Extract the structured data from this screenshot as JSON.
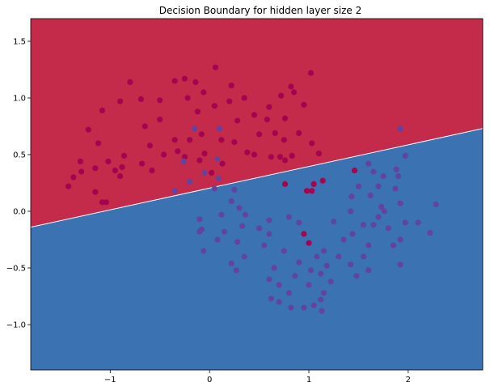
{
  "chart_data": {
    "type": "scatter",
    "title": "Decision Boundary for hidden layer size 2",
    "xlabel": "",
    "ylabel": "",
    "xlim": [
      -1.8,
      2.75
    ],
    "ylim": [
      -1.4,
      1.7
    ],
    "grid": false,
    "legend": "none",
    "x_ticks": [
      -1,
      0,
      1,
      2
    ],
    "x_tick_labels": [
      "−1",
      "0",
      "1",
      "2"
    ],
    "y_ticks": [
      -1.0,
      -0.5,
      0.0,
      0.5,
      1.0,
      1.5
    ],
    "y_tick_labels": [
      "−1.0",
      "−0.5",
      "0.0",
      "0.5",
      "1.0",
      "1.5"
    ],
    "decision_boundary": {
      "points": [
        [
          -1.8,
          -0.14
        ],
        [
          2.75,
          0.73
        ]
      ]
    },
    "colors": {
      "region_upper": "#c42b4a",
      "region_lower": "#3b72b1",
      "class_0": "#a3034f",
      "class_1": "#6244a0"
    },
    "series": [
      {
        "class": 0,
        "points": [
          [
            -1.3,
            0.44
          ],
          [
            -1.22,
            0.72
          ],
          [
            -1.12,
            0.6
          ],
          [
            -1.15,
            0.38
          ],
          [
            -1.02,
            0.44
          ],
          [
            -0.95,
            0.36
          ],
          [
            -0.86,
            0.49
          ],
          [
            -0.88,
            0.39
          ],
          [
            -0.6,
            0.58
          ],
          [
            -0.35,
            0.63
          ],
          [
            -0.2,
            0.63
          ],
          [
            -0.1,
            0.45
          ],
          [
            -0.08,
            0.68
          ],
          [
            -1.42,
            0.22
          ],
          [
            -1.37,
            0.3
          ],
          [
            -1.29,
            0.35
          ],
          [
            -1.15,
            0.17
          ],
          [
            -1.04,
            0.08
          ],
          [
            -0.9,
            0.31
          ],
          [
            -0.68,
            0.42
          ],
          [
            -0.58,
            0.36
          ],
          [
            -0.46,
            0.5
          ],
          [
            -0.32,
            0.53
          ],
          [
            -0.25,
            0.48
          ],
          [
            -0.05,
            0.51
          ],
          [
            0.02,
            0.34
          ],
          [
            0.13,
            0.42
          ],
          [
            0.12,
            0.63
          ],
          [
            0.25,
            0.61
          ],
          [
            0.38,
            0.52
          ],
          [
            0.45,
            0.5
          ],
          [
            0.5,
            0.68
          ],
          [
            0.58,
            0.81
          ],
          [
            0.66,
            0.69
          ],
          [
            0.75,
            0.63
          ],
          [
            0.9,
            0.69
          ],
          [
            1.03,
            0.6
          ],
          [
            1.1,
            0.51
          ],
          [
            0.71,
            0.48
          ],
          [
            0.76,
            0.45
          ],
          [
            0.83,
            0.49
          ],
          [
            0.62,
            0.48
          ],
          [
            -1.08,
            0.89
          ],
          [
            -0.9,
            0.97
          ],
          [
            -0.8,
            1.14
          ],
          [
            -0.69,
            0.99
          ],
          [
            -0.5,
            0.98
          ],
          [
            -0.35,
            1.15
          ],
          [
            -0.22,
            1.0
          ],
          [
            -0.12,
            0.88
          ],
          [
            0.05,
            0.93
          ],
          [
            0.2,
            0.97
          ],
          [
            0.35,
            1.0
          ],
          [
            0.45,
            0.85
          ],
          [
            0.6,
            0.92
          ],
          [
            0.72,
            1.02
          ],
          [
            0.85,
            1.05
          ],
          [
            -0.14,
            1.14
          ],
          [
            0.06,
            1.27
          ],
          [
            0.22,
            1.11
          ],
          [
            0.82,
            1.1
          ],
          [
            -0.25,
            1.17
          ],
          [
            0.95,
            0.94
          ],
          [
            -0.06,
            1.05
          ],
          [
            -1.08,
            0.08
          ],
          [
            0.76,
            0.24
          ],
          [
            0.98,
            0.18
          ],
          [
            1.03,
            0.18
          ],
          [
            1.05,
            0.24
          ],
          [
            1.14,
            0.27
          ],
          [
            1.46,
            0.36
          ],
          [
            0.95,
            -0.2
          ],
          [
            1.0,
            -0.28
          ],
          [
            -0.65,
            0.75
          ],
          [
            0.28,
            0.8
          ],
          [
            0.76,
            0.82
          ],
          [
            -0.5,
            0.81
          ],
          [
            1.02,
            1.22
          ]
        ]
      },
      {
        "class": 1,
        "points": [
          [
            -0.15,
            0.73
          ],
          [
            0.1,
            0.73
          ],
          [
            -0.26,
            0.44
          ],
          [
            0.08,
            0.46
          ],
          [
            -0.05,
            0.34
          ],
          [
            -0.2,
            0.26
          ],
          [
            0.09,
            0.29
          ],
          [
            0.05,
            0.2
          ],
          [
            -0.35,
            0.18
          ],
          [
            1.92,
            0.73
          ],
          [
            1.97,
            0.49
          ],
          [
            1.88,
            0.37
          ],
          [
            1.6,
            0.42
          ],
          [
            1.65,
            0.35
          ],
          [
            1.75,
            0.31
          ],
          [
            1.9,
            0.31
          ],
          [
            1.5,
            0.22
          ],
          [
            1.7,
            0.22
          ],
          [
            1.87,
            0.2
          ],
          [
            0.22,
            0.09
          ],
          [
            0.12,
            -0.03
          ],
          [
            0.3,
            0.03
          ],
          [
            0.36,
            -0.03
          ],
          [
            -0.1,
            -0.07
          ],
          [
            0.33,
            -0.13
          ],
          [
            -0.1,
            -0.18
          ],
          [
            0.15,
            -0.18
          ],
          [
            0.28,
            -0.27
          ],
          [
            0.08,
            -0.25
          ],
          [
            0.35,
            -0.4
          ],
          [
            0.22,
            -0.46
          ],
          [
            0.27,
            -0.52
          ],
          [
            -0.06,
            -0.35
          ],
          [
            0.6,
            -0.2
          ],
          [
            0.5,
            -0.15
          ],
          [
            0.55,
            -0.3
          ],
          [
            0.6,
            -0.6
          ],
          [
            0.65,
            -0.5
          ],
          [
            0.7,
            -0.65
          ],
          [
            0.75,
            -0.35
          ],
          [
            0.8,
            -0.72
          ],
          [
            0.86,
            -0.57
          ],
          [
            0.9,
            -0.45
          ],
          [
            1.0,
            -0.65
          ],
          [
            1.02,
            -0.52
          ],
          [
            1.08,
            -0.4
          ],
          [
            1.12,
            -0.55
          ],
          [
            1.22,
            -0.62
          ],
          [
            1.18,
            -0.48
          ],
          [
            1.15,
            -0.35
          ],
          [
            1.3,
            -0.4
          ],
          [
            1.35,
            -0.25
          ],
          [
            1.42,
            -0.47
          ],
          [
            1.44,
            -0.2
          ],
          [
            1.48,
            -0.57
          ],
          [
            1.55,
            -0.4
          ],
          [
            1.6,
            -0.3
          ],
          [
            1.65,
            -0.12
          ],
          [
            1.7,
            -0.05
          ],
          [
            1.76,
            0.0
          ],
          [
            1.8,
            -0.15
          ],
          [
            1.85,
            -0.3
          ],
          [
            1.92,
            -0.25
          ],
          [
            1.92,
            0.07
          ],
          [
            1.97,
            -0.1
          ],
          [
            1.92,
            -0.47
          ],
          [
            2.1,
            -0.1
          ],
          [
            2.22,
            -0.19
          ],
          [
            2.28,
            0.06
          ],
          [
            1.62,
            0.14
          ],
          [
            1.73,
            0.04
          ],
          [
            1.55,
            -0.12
          ],
          [
            1.6,
            -0.52
          ],
          [
            1.43,
            0.13
          ],
          [
            1.25,
            -0.09
          ],
          [
            1.42,
            0.0
          ],
          [
            0.9,
            -0.1
          ],
          [
            0.8,
            -0.05
          ],
          [
            0.6,
            -0.08
          ],
          [
            1.05,
            -0.83
          ],
          [
            1.13,
            -0.88
          ],
          [
            1.12,
            -0.78
          ],
          [
            1.15,
            -0.72
          ],
          [
            0.95,
            -0.85
          ],
          [
            0.82,
            -0.85
          ],
          [
            0.62,
            -0.77
          ],
          [
            0.7,
            -0.8
          ],
          [
            -0.08,
            -0.16
          ],
          [
            0.25,
            0.19
          ]
        ]
      }
    ]
  }
}
